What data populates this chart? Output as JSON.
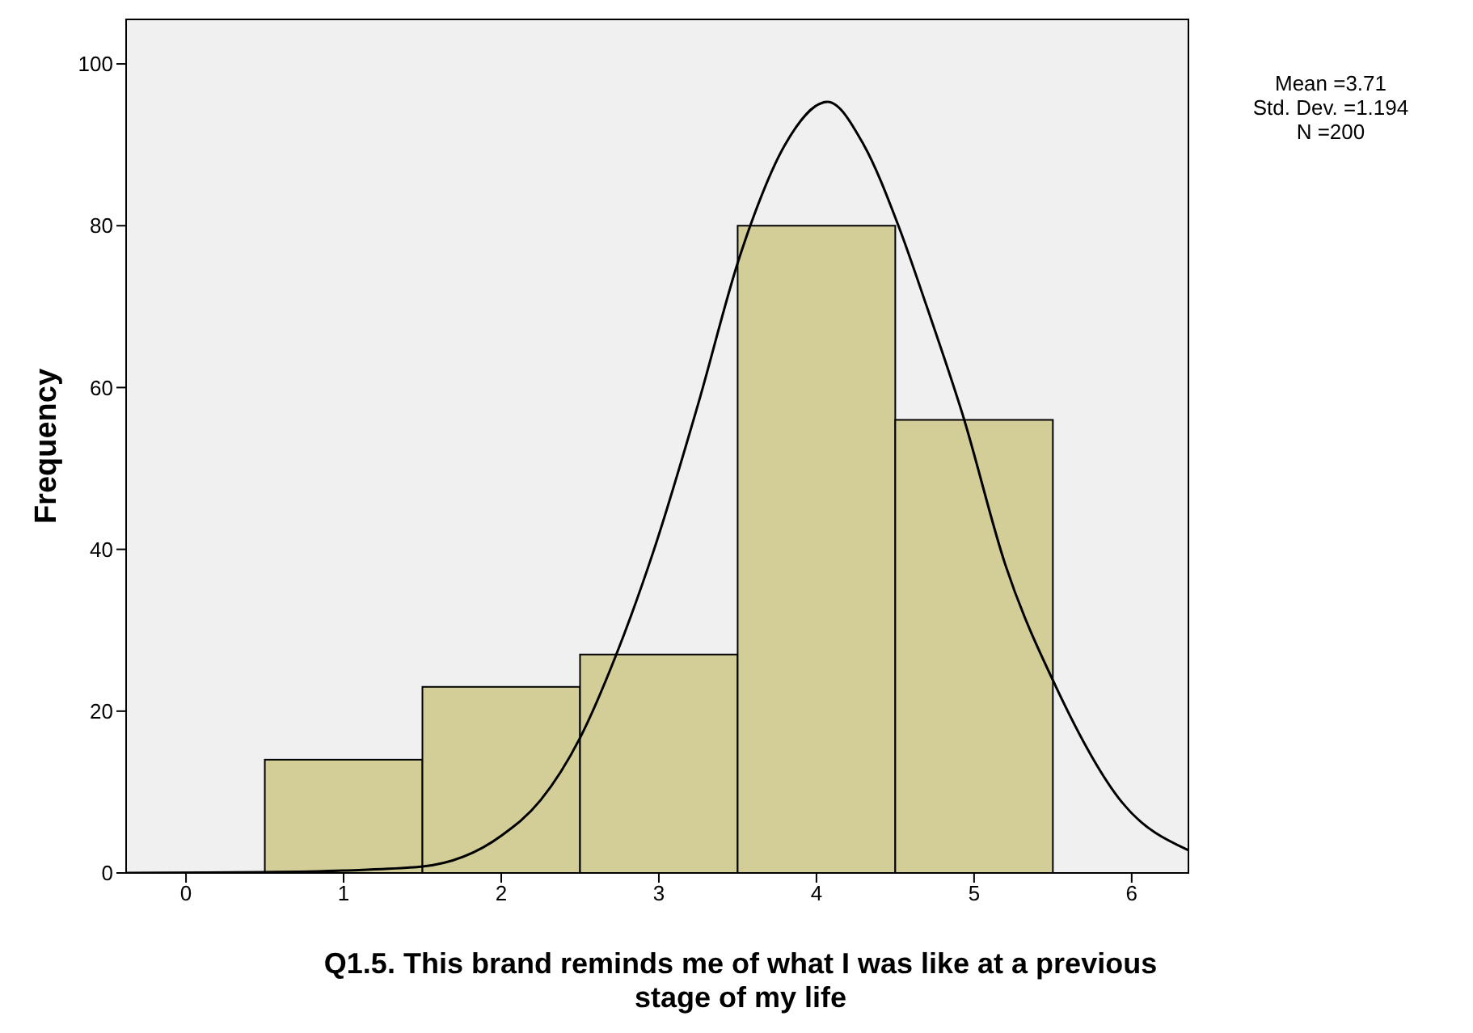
{
  "chart_data": {
    "type": "histogram",
    "xlabel": "Q1.5. This brand reminds me of what I was like at a previous stage of my life",
    "ylabel": "Frequency",
    "series": [
      {
        "color": "#d3ce98",
        "bins": [
          0.5,
          1.5,
          2.5,
          3.5,
          4.5,
          5.5
        ],
        "values": [
          14,
          23,
          27,
          80,
          56
        ]
      },
      {
        "type": "line",
        "color": "#000000",
        "x": [
          -0.38,
          0.5,
          1,
          1.5,
          2,
          2.25,
          2.5,
          2.73,
          2.97,
          3.25,
          3.51,
          3.58,
          3.8,
          4.07,
          4.3,
          4.52,
          4.7,
          4.93,
          5.2,
          5.52,
          5.94,
          6.36
        ],
        "values": [
          0,
          0.1,
          0.3,
          0.8,
          4.6,
          9,
          16.7,
          27,
          40,
          58,
          76,
          80,
          90,
          95.3,
          90,
          80,
          70,
          56.5,
          38,
          23,
          8.7,
          2.8
        ]
      }
    ],
    "xlim": [
      -0.38,
      6.36
    ],
    "xticks": [
      0,
      1,
      2,
      3,
      4,
      5,
      6
    ],
    "ylim": [
      0,
      105.5
    ],
    "yticks": [
      0,
      20,
      40,
      60,
      80,
      100
    ],
    "annotations": [
      "Mean =3.71",
      "Std. Dev. =1.194",
      "N =200"
    ]
  }
}
